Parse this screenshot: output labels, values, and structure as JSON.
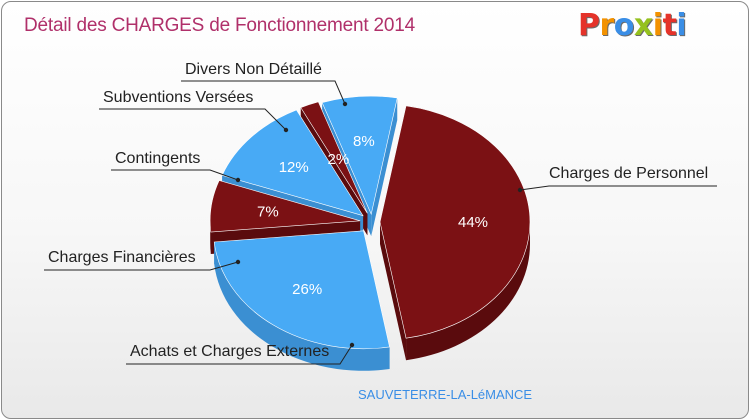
{
  "header": {
    "title": "Détail des CHARGES de Fonctionnement 2014",
    "brand": {
      "letters": [
        "P",
        "r",
        "o",
        "x",
        "i",
        "t",
        "i"
      ],
      "colors": [
        "#e5332a",
        "#f39200",
        "#3a8ee6",
        "#95c11f",
        "#f39200",
        "#e5332a",
        "#3a8ee6"
      ]
    }
  },
  "footer": {
    "commune": "SAUVETERRE-LA-LéMANCE"
  },
  "colors": {
    "dark_red": "#7b1114",
    "dark_red_side": "#5a0b0d",
    "light_blue": "#48aaf5",
    "light_blue_side": "#3b8fd2",
    "title": "#b0306a"
  },
  "chart_data": {
    "type": "pie",
    "style": "3d-exploded",
    "title": "Détail des CHARGES de Fonctionnement 2014",
    "subtitle": "SAUVETERRE-LA-LéMANCE",
    "slices": [
      {
        "label": "Charges de Personnel",
        "value": 44,
        "pct_label": "44%",
        "color": "#7b1114"
      },
      {
        "label": "Achats et Charges Externes",
        "value": 26,
        "pct_label": "26%",
        "color": "#48aaf5"
      },
      {
        "label": "Charges Financières",
        "value": 7,
        "pct_label": "7%",
        "color": "#7b1114"
      },
      {
        "label": "Contingents",
        "value": 12,
        "pct_label": "12%",
        "color": "#48aaf5"
      },
      {
        "label": "Subventions Versées",
        "value": 2,
        "pct_label": "2%",
        "color": "#7b1114"
      },
      {
        "label": "Divers Non Détaillé",
        "value": 8,
        "pct_label": "8%",
        "color": "#48aaf5"
      }
    ]
  }
}
